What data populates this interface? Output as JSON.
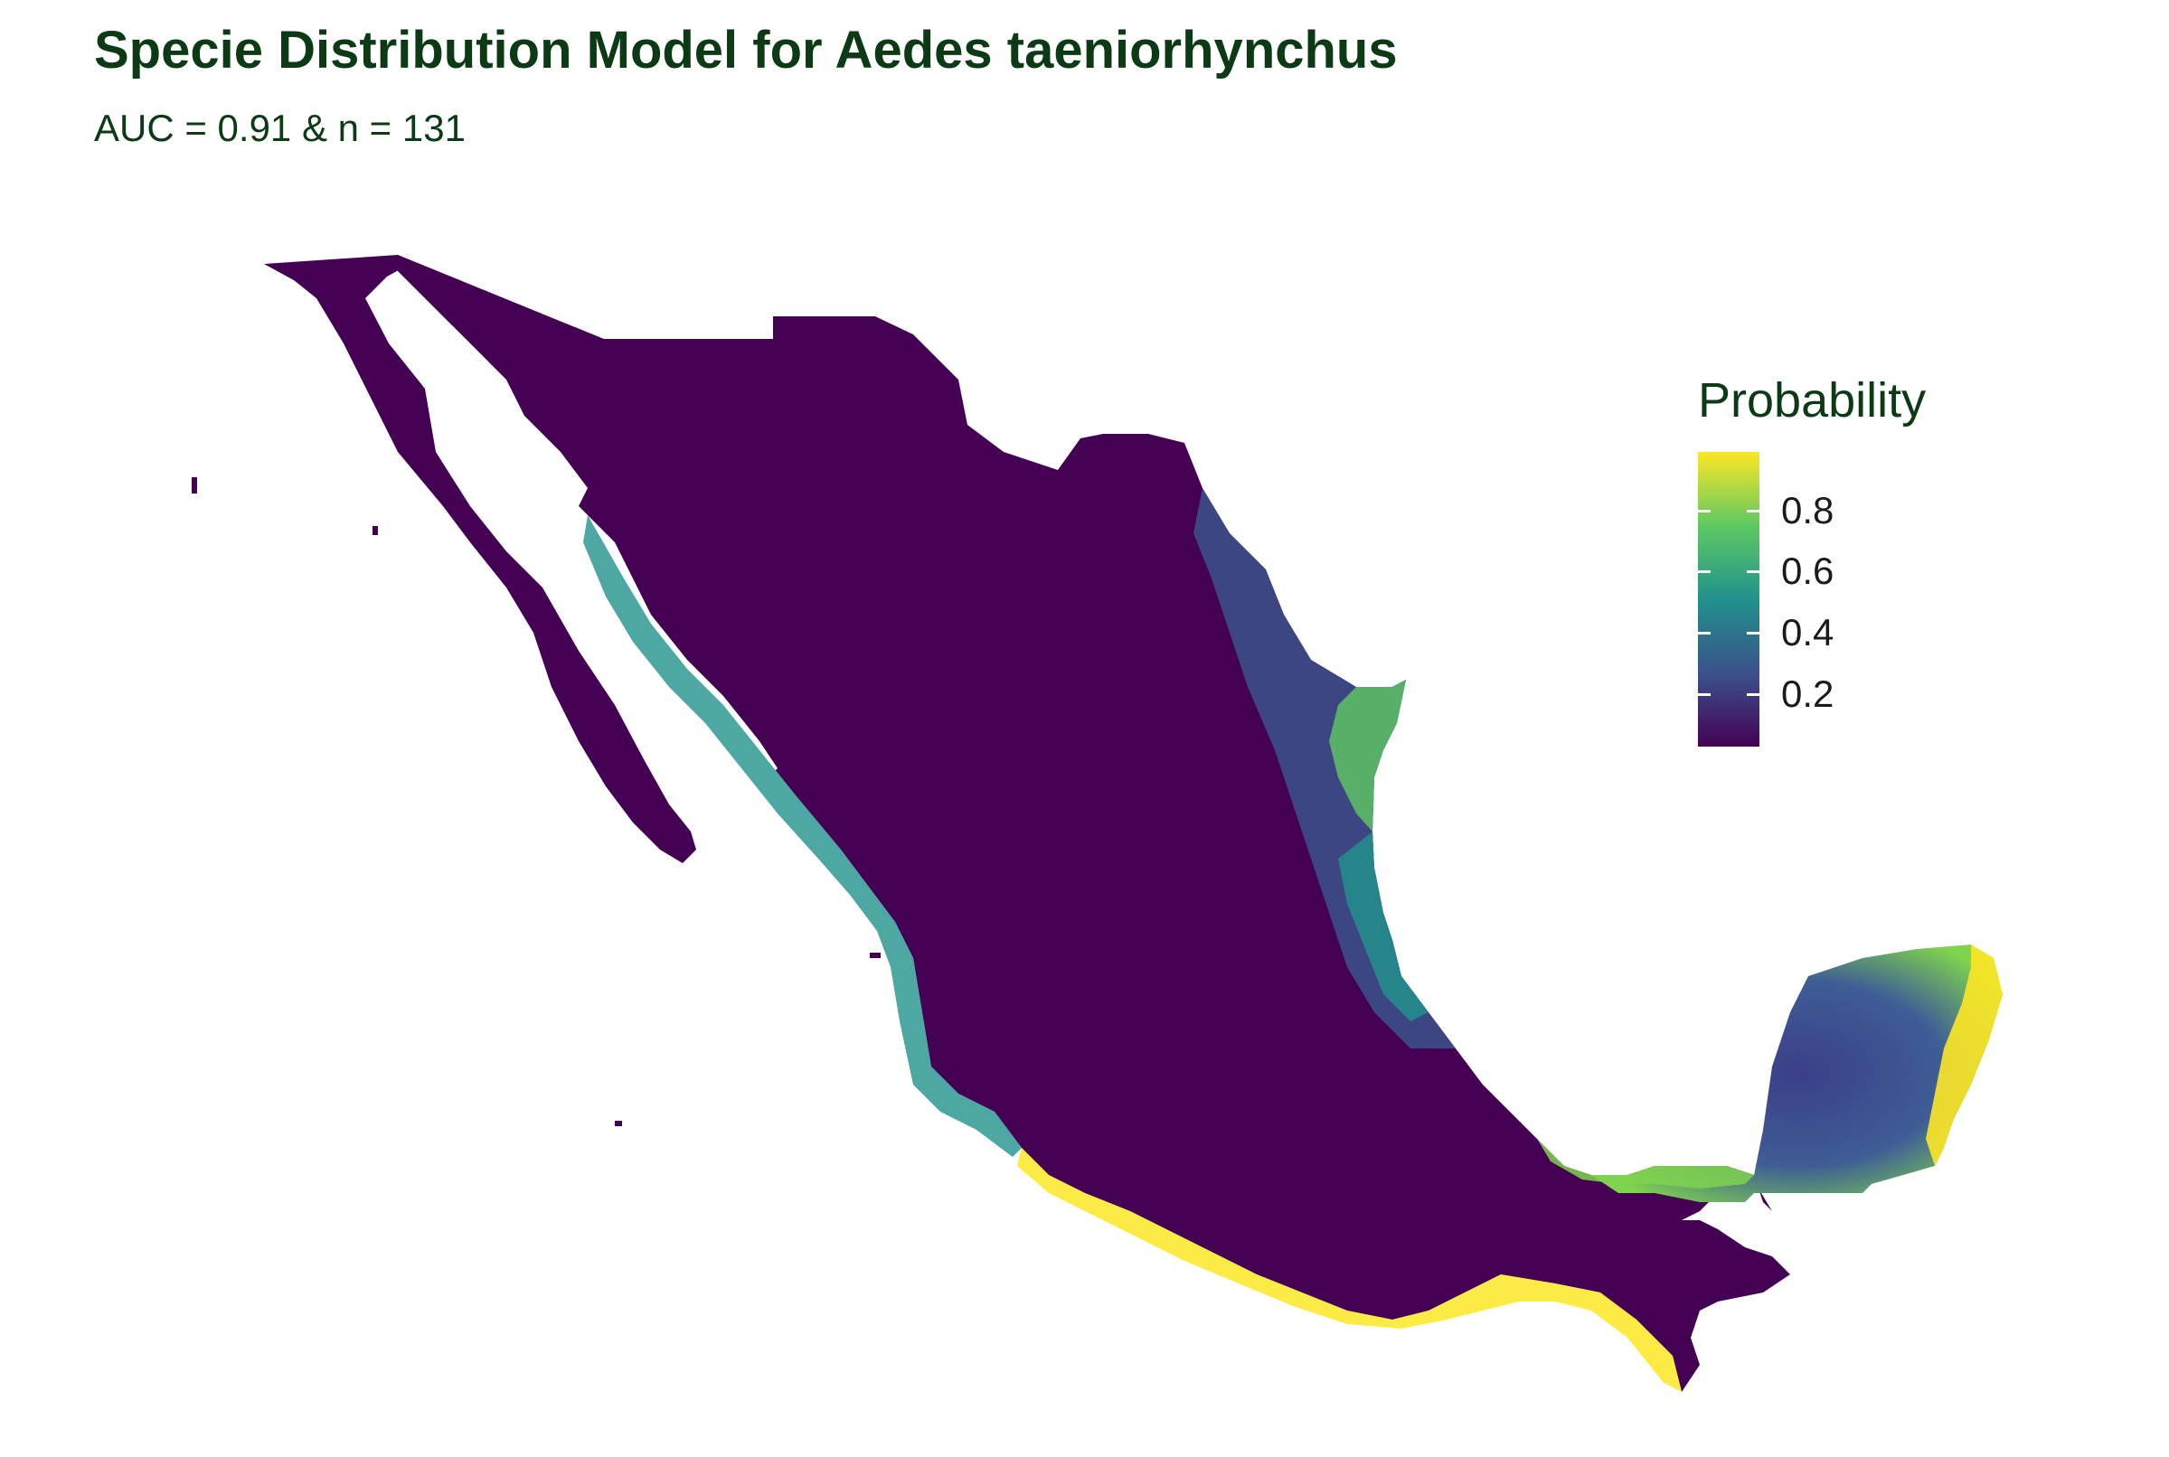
{
  "header": {
    "title": "Specie Distribution Model for Aedes taeniorhynchus",
    "subtitle": "AUC = 0.91 & n = 131"
  },
  "legend": {
    "title": "Probability",
    "ticks": [
      "0.2",
      "0.4",
      "0.6",
      "0.8"
    ],
    "tick_values": [
      0.2,
      0.4,
      0.6,
      0.8
    ],
    "range": [
      0.03,
      0.99
    ],
    "palette": [
      "#440154",
      "#3b528b",
      "#21918c",
      "#5ec962",
      "#fde725"
    ]
  },
  "map": {
    "region": "Mexico",
    "low_color": "#440154",
    "high_color": "#fde725"
  }
}
